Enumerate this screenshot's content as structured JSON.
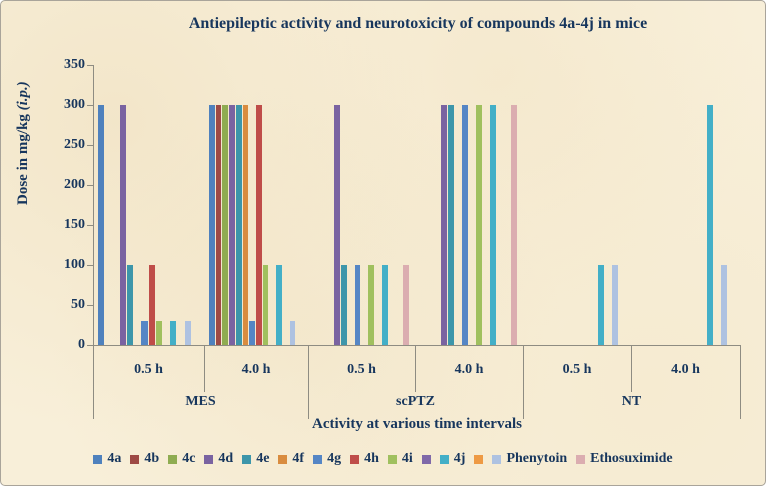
{
  "title": "Antiepileptic activity and neurotoxicity of compounds 4a-4j in mice",
  "chart_data": {
    "type": "bar",
    "title": "Antiepileptic activity and neurotoxicity of compounds 4a-4j in mice",
    "xlabel": "Activity at various time intervals",
    "ylabel": "Dose in mg/kg (i.p.)",
    "ylabel_parts": {
      "prefix": "Dose in mg/kg ",
      "italic": "(i.p.)"
    },
    "ylim": [
      0,
      350
    ],
    "y_ticks": [
      0,
      50,
      100,
      150,
      200,
      250,
      300,
      350
    ],
    "grid": false,
    "legend_position": "bottom",
    "categories": [
      "MES 0.5 h",
      "MES 4.0 h",
      "scPTZ 0.5 h",
      "scPTZ 4.0 h",
      "NT 0.5 h",
      "NT 4.0 h"
    ],
    "time_labels": [
      "0.5 h",
      "4.0 h",
      "0.5 h",
      "4.0 h",
      "0.5 h",
      "4.0 h"
    ],
    "model_labels": [
      "MES",
      "scPTZ",
      "NT"
    ],
    "series": [
      {
        "name": "4a",
        "color": "#4f81bd",
        "values": [
          300,
          300,
          0,
          0,
          0,
          0
        ]
      },
      {
        "name": "4b",
        "color": "#9e4a45",
        "values": [
          0,
          300,
          0,
          0,
          0,
          0
        ]
      },
      {
        "name": "4c",
        "color": "#8fac51",
        "values": [
          0,
          300,
          0,
          0,
          0,
          0
        ]
      },
      {
        "name": "4d",
        "color": "#7a63a1",
        "values": [
          300,
          300,
          300,
          300,
          0,
          0
        ]
      },
      {
        "name": "4e",
        "color": "#3d96aa",
        "values": [
          100,
          300,
          100,
          300,
          0,
          0
        ]
      },
      {
        "name": "4f",
        "color": "#d98c3f",
        "values": [
          0,
          300,
          0,
          0,
          0,
          0
        ]
      },
      {
        "name": "4g",
        "color": "#5586c5",
        "values": [
          30,
          30,
          100,
          300,
          0,
          0
        ]
      },
      {
        "name": "4h",
        "color": "#bf4d49",
        "values": [
          100,
          300,
          0,
          0,
          0,
          0
        ]
      },
      {
        "name": "4i",
        "color": "#a0c05e",
        "values": [
          30,
          100,
          100,
          300,
          0,
          0
        ]
      },
      {
        "name": "",
        "color": "#8069a9",
        "values": [
          0,
          0,
          0,
          0,
          0,
          0
        ]
      },
      {
        "name": "4j",
        "color": "#43afc7",
        "values": [
          30,
          100,
          100,
          300,
          100,
          300
        ]
      },
      {
        "name": "",
        "color": "#ee9a44",
        "values": [
          0,
          0,
          0,
          0,
          0,
          0
        ]
      },
      {
        "name": "Phenytoin",
        "color": "#aec2e1",
        "values": [
          30,
          30,
          0,
          0,
          100,
          100
        ]
      },
      {
        "name": "Ethosuximide",
        "color": "#dbadb0",
        "values": [
          0,
          0,
          100,
          300,
          0,
          0
        ]
      }
    ]
  }
}
